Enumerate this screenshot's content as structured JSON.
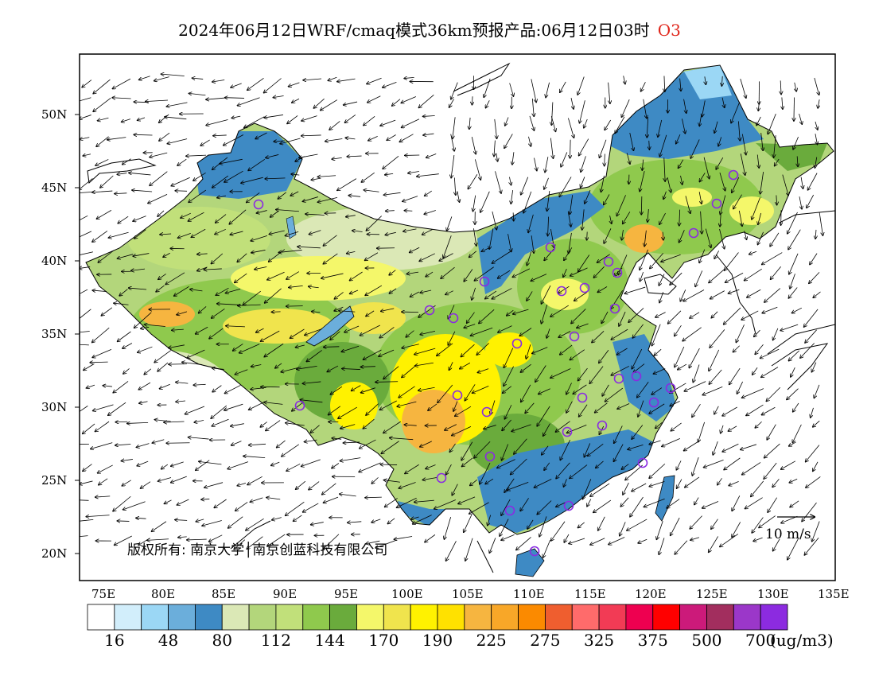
{
  "title": {
    "main": "2024年06月12日WRF/cmaq模式36km预报产品:06月12日03时",
    "species": "O3"
  },
  "lat_labels": [
    "50N",
    "45N",
    "40N",
    "35N",
    "30N",
    "25N",
    "20N"
  ],
  "lon_labels": [
    "75E",
    "80E",
    "85E",
    "90E",
    "95E",
    "100E",
    "105E",
    "110E",
    "115E",
    "120E",
    "125E",
    "130E",
    "135E"
  ],
  "copyright": "版权所有: 南京大学│南京创蓝科技有限公司",
  "wind_reference": "10 m/s",
  "colorbar": {
    "colors": [
      "#ffffff",
      "#d2eefb",
      "#9bd7f5",
      "#6baedb",
      "#3e8ac4",
      "#dbe8b6",
      "#b3d67b",
      "#c1e07a",
      "#8fc94d",
      "#6aab3c",
      "#f4f76a",
      "#f0e44d",
      "#fff200",
      "#ffe100",
      "#f6b540",
      "#f8a728",
      "#fb8a00",
      "#ef5e2f",
      "#ff6b6b",
      "#f23b55",
      "#ee0050",
      "#ff0000",
      "#cc1a7a",
      "#a22e5e",
      "#9b37c9",
      "#8c2be0"
    ],
    "tick_labels": [
      "16",
      "48",
      "80",
      "112",
      "144",
      "170",
      "190",
      "225",
      "275",
      "325",
      "375",
      "500",
      "700"
    ],
    "unit": "(ug/m3)"
  },
  "stations_note_colors": {
    "station": "#8a2be2"
  }
}
